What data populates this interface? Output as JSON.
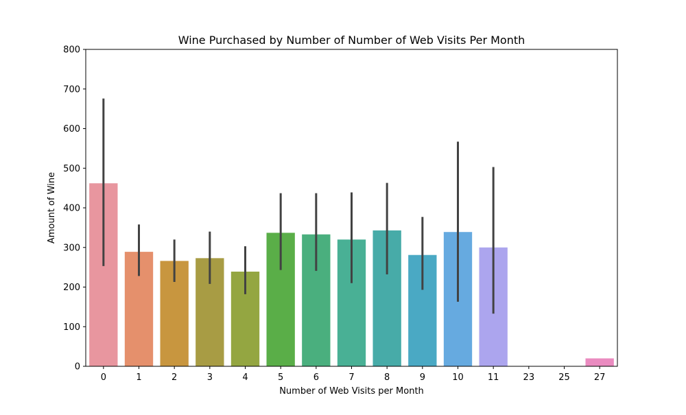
{
  "chart_data": {
    "type": "bar",
    "title": "Wine Purchased by Number of Number of Web Visits Per Month",
    "xlabel": "Number of Web Visits per Month",
    "ylabel": "Amount of Wine",
    "ylim": [
      0,
      800
    ],
    "yticks": [
      "0",
      "100",
      "200",
      "300",
      "400",
      "500",
      "600",
      "700",
      "800"
    ],
    "categories": [
      "0",
      "1",
      "2",
      "3",
      "4",
      "5",
      "6",
      "7",
      "8",
      "9",
      "10",
      "11",
      "23",
      "25",
      "27"
    ],
    "values": [
      462,
      289,
      266,
      273,
      239,
      337,
      333,
      320,
      343,
      281,
      339,
      300,
      0,
      0,
      20
    ],
    "error_bars": [
      [
        253,
        676
      ],
      [
        228,
        358
      ],
      [
        213,
        320
      ],
      [
        208,
        340
      ],
      [
        182,
        303
      ],
      [
        243,
        437
      ],
      [
        241,
        437
      ],
      [
        210,
        439
      ],
      [
        232,
        463
      ],
      [
        193,
        377
      ],
      [
        163,
        567
      ],
      [
        133,
        503
      ],
      null,
      null,
      null
    ],
    "colors": [
      "#e8969f",
      "#e5906c",
      "#c8963f",
      "#a89c44",
      "#94a641",
      "#5aae48",
      "#4aaf7e",
      "#49b095",
      "#47aba8",
      "#4aa9c4",
      "#66aae0",
      "#aca5ee",
      "#d696e8",
      "#ea8dd0",
      "#ea8bc0"
    ],
    "error_color": "#424242",
    "grid": false
  }
}
